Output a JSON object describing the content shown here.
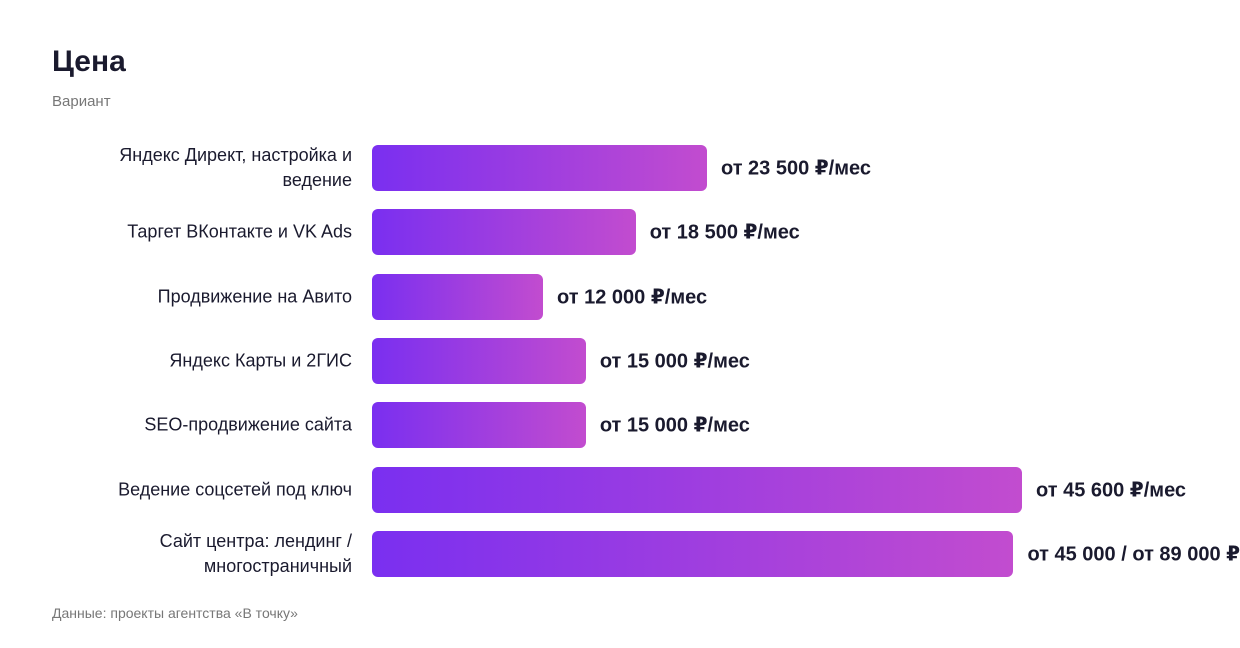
{
  "chart_data": {
    "type": "hbar",
    "title": "Цена",
    "subtitle": "Вариант",
    "note": "Данные: проекты агентства «В точку»",
    "categories": [
      "Яндекс Директ, настройка и ведение",
      "Таргет ВКонтакте и VK Ads",
      "Продвижение на Авито",
      "Яндекс Карты и 2ГИС",
      "SEO-продвижение сайта",
      "Ведение соцсетей под ключ",
      "Сайт центра: лендинг / многостраничный"
    ],
    "values": [
      23500,
      18500,
      12000,
      15000,
      15000,
      45600,
      45000
    ],
    "value_labels": [
      "от 23 500 ₽/мес",
      "от 18 500 ₽/мес",
      "от 12 000 ₽/мес",
      "от 15 000 ₽/мес",
      "от 15 000 ₽/мес",
      "от 45 600 ₽/мес",
      "от 45 000 / от 89 000 ₽"
    ],
    "gradient": [
      "#7a2ff0",
      "#c24ccf"
    ]
  }
}
